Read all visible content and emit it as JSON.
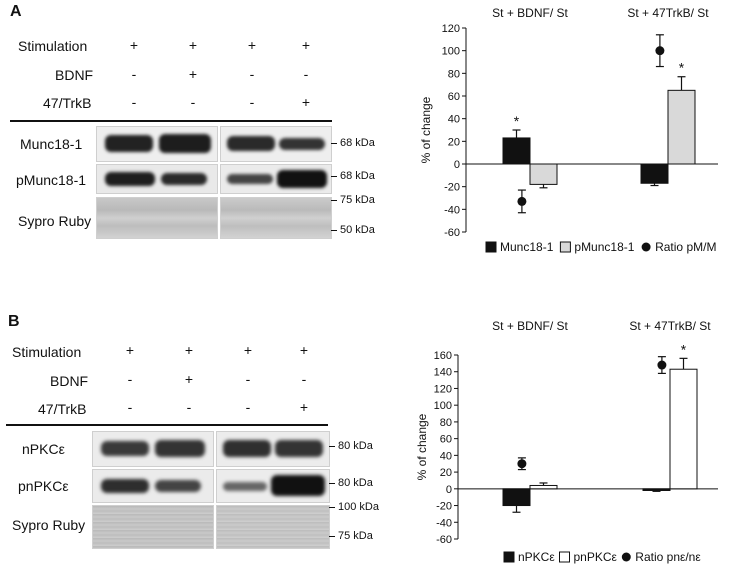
{
  "panels": [
    {
      "label": "A",
      "conditions": [
        {
          "label": "Stimulation",
          "signs": [
            "+",
            "+",
            "+",
            "+"
          ]
        },
        {
          "label": "BDNF",
          "signs": [
            "-",
            "+",
            "-",
            "-"
          ]
        },
        {
          "label": "47/TrkB",
          "signs": [
            "-",
            "-",
            "-",
            "+"
          ]
        }
      ],
      "blots": [
        {
          "label": "Munc18-1",
          "markers": [
            "68 kDa"
          ]
        },
        {
          "label": "pMunc18-1",
          "markers": [
            "68 kDa"
          ]
        },
        {
          "label": "Sypro Ruby",
          "markers": [
            "75 kDa",
            "50 kDa"
          ]
        }
      ]
    },
    {
      "label": "B",
      "conditions": [
        {
          "label": "Stimulation",
          "signs": [
            "+",
            "+",
            "+",
            "+"
          ]
        },
        {
          "label": "BDNF",
          "signs": [
            "-",
            "+",
            "-",
            "-"
          ]
        },
        {
          "label": "47/TrkB",
          "signs": [
            "-",
            "-",
            "-",
            "+"
          ]
        }
      ],
      "blots": [
        {
          "label": "nPKCε",
          "markers": [
            "80 kDa"
          ]
        },
        {
          "label": "pnPKCε",
          "markers": [
            "80 kDa"
          ]
        },
        {
          "label": "Sypro Ruby",
          "markers": [
            "100 kDa",
            "75 kDa"
          ]
        }
      ]
    }
  ],
  "chart_data": [
    {
      "type": "bar",
      "ylabel": "% of change",
      "ylim": [
        -60,
        120
      ],
      "yticks": [
        -60,
        -40,
        -20,
        0,
        20,
        40,
        60,
        80,
        100,
        120
      ],
      "categories": [
        "St + BDNF/ St",
        "St + 47TrkB/ St"
      ],
      "series": [
        {
          "name": "Munc18-1",
          "kind": "bar",
          "fill": "#111111",
          "values": [
            23,
            -17
          ],
          "errors": [
            7,
            2
          ],
          "significant": [
            true,
            false
          ]
        },
        {
          "name": "pMunc18-1",
          "kind": "bar",
          "fill": "#d9d9d9",
          "values": [
            -18,
            65
          ],
          "errors": [
            3,
            12
          ],
          "significant": [
            false,
            true
          ]
        },
        {
          "name": "Ratio pM/M",
          "kind": "point",
          "fill": "#111111",
          "values": [
            -33,
            100
          ],
          "errors": [
            10,
            14
          ],
          "significant": [
            false,
            false
          ]
        }
      ]
    },
    {
      "type": "bar",
      "ylabel": "% of change",
      "ylim": [
        -60,
        160
      ],
      "yticks": [
        -60,
        -40,
        -20,
        0,
        20,
        40,
        60,
        80,
        100,
        120,
        140,
        160
      ],
      "categories": [
        "St + BDNF/ St",
        "St + 47TrkB/ St"
      ],
      "series": [
        {
          "name": "nPKCε",
          "kind": "bar",
          "fill": "#111111",
          "values": [
            -20,
            -2
          ],
          "errors": [
            8,
            1
          ],
          "significant": [
            false,
            false
          ]
        },
        {
          "name": "pnPKCε",
          "kind": "bar",
          "fill": "#ffffff",
          "values": [
            4,
            143
          ],
          "errors": [
            3,
            13
          ],
          "significant": [
            false,
            true
          ]
        },
        {
          "name": "Ratio pnε/nε",
          "kind": "point",
          "fill": "#111111",
          "values": [
            30,
            148
          ],
          "errors": [
            7,
            10
          ],
          "significant": [
            false,
            false
          ]
        }
      ]
    }
  ],
  "significance_marker": "*"
}
